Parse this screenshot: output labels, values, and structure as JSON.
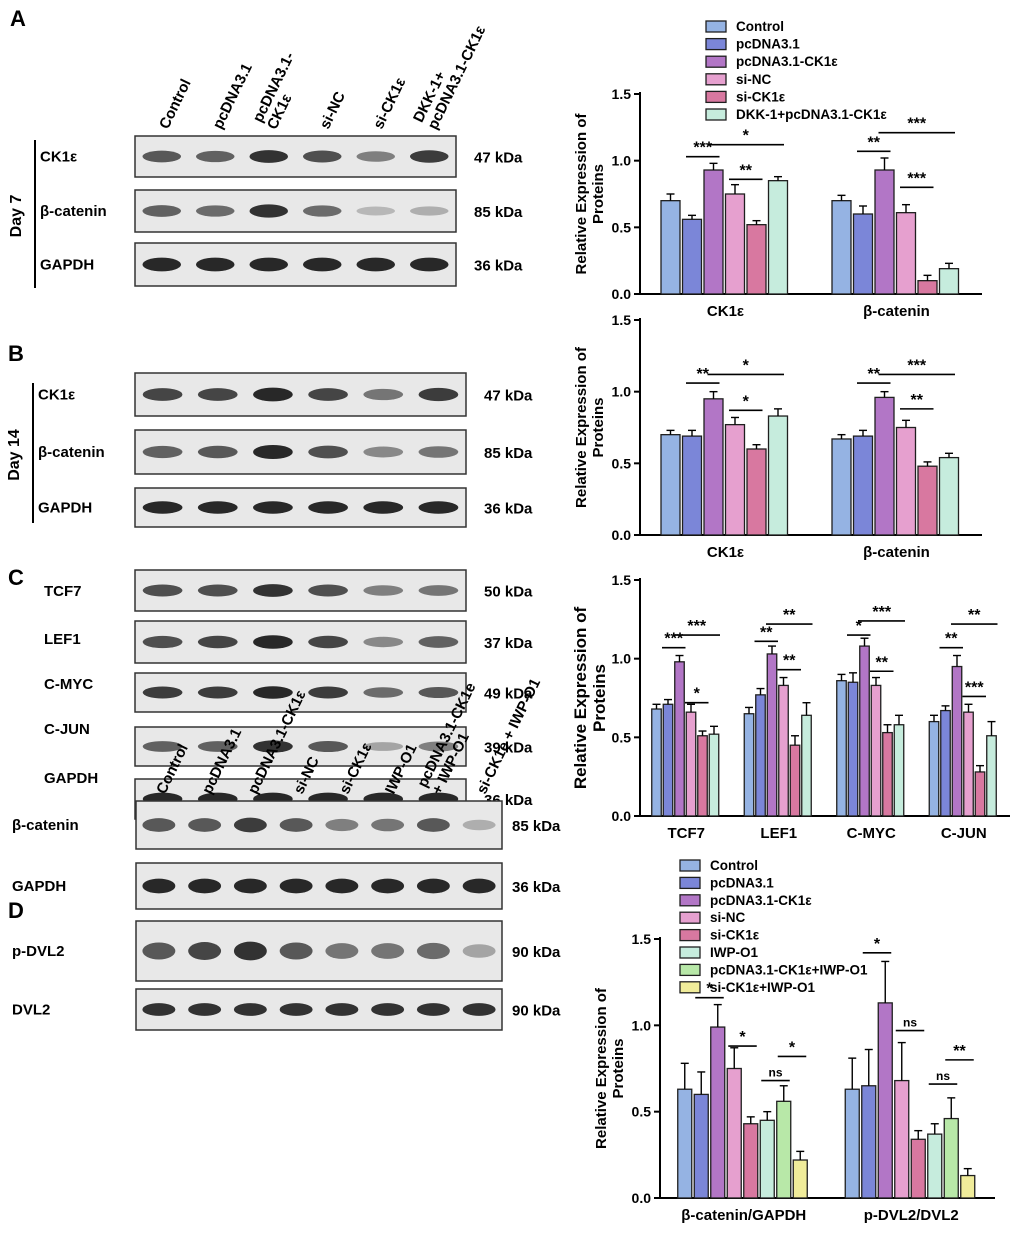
{
  "colors": {
    "series": [
      "#95b3e3",
      "#7b86d8",
      "#b276c6",
      "#e6a0cf",
      "#d878a0",
      "#c6ecdd",
      "#b8e8a8",
      "#f0ec9a"
    ],
    "bar_stroke": "#1f1f1f",
    "band": "#1e1e1e",
    "blot_bg": "#e8e8e8"
  },
  "panels": {
    "A": {
      "letter": "A",
      "day": "Day 7",
      "lanes": [
        "Control",
        "pcDNA3.1",
        "pcDNA3.1-\nCK1ε",
        "si-NC",
        "si-CK1ε",
        "DKK-1+\npcDNA3.1-CK1ε"
      ],
      "blots": [
        {
          "label": "CK1ε",
          "kda": "47 kDa",
          "int": [
            0.75,
            0.7,
            0.95,
            0.8,
            0.55,
            0.9
          ]
        },
        {
          "label": "β-catenin",
          "kda": "85 kDa",
          "int": [
            0.7,
            0.65,
            0.95,
            0.65,
            0.25,
            0.3
          ]
        },
        {
          "label": "GAPDH",
          "kda": "36 kDa",
          "int": [
            1,
            1,
            1,
            1,
            1,
            1
          ]
        }
      ]
    },
    "B": {
      "letter": "B",
      "day": "Day 14",
      "blots": [
        {
          "label": "CK1ε",
          "kda": "47 kDa",
          "int": [
            0.85,
            0.85,
            1,
            0.85,
            0.6,
            0.9
          ]
        },
        {
          "label": "β-catenin",
          "kda": "85 kDa",
          "int": [
            0.7,
            0.75,
            1,
            0.8,
            0.5,
            0.6
          ]
        },
        {
          "label": "GAPDH",
          "kda": "36 kDa",
          "int": [
            1,
            1,
            1,
            1,
            1,
            1
          ]
        }
      ]
    },
    "C": {
      "letter": "C",
      "blots": [
        {
          "label": "TCF7",
          "kda": "50 kDa",
          "int": [
            0.8,
            0.8,
            0.95,
            0.8,
            0.55,
            0.6
          ]
        },
        {
          "label": "LEF1",
          "kda": "37 kDa",
          "int": [
            0.8,
            0.85,
            1,
            0.85,
            0.5,
            0.7
          ]
        },
        {
          "label": "C-MYC",
          "kda": "49 kDa",
          "int": [
            0.9,
            0.9,
            1,
            0.9,
            0.65,
            0.75
          ]
        },
        {
          "label": "C-JUN",
          "kda": "39 kDa",
          "int": [
            0.7,
            0.7,
            0.95,
            0.75,
            0.35,
            0.55
          ]
        },
        {
          "label": "GAPDH",
          "kda": "36 kDa",
          "int": [
            1,
            1,
            1,
            1,
            1,
            1
          ]
        }
      ]
    },
    "D": {
      "letter": "D",
      "lanes": [
        "Control",
        "pcDNA3.1",
        "pcDNA3.1-CK1ε",
        "si-NC",
        "si-CK1ε",
        "IWP-O1",
        "pcDNA3.1-CK1e\n+ IWP-O1",
        "si-CK1e + IWP-O1"
      ],
      "blots": [
        {
          "label": "β-catenin",
          "kda": "85 kDa",
          "int": [
            0.75,
            0.75,
            0.9,
            0.75,
            0.55,
            0.6,
            0.75,
            0.3
          ]
        },
        {
          "label": "GAPDH",
          "kda": "36 kDa",
          "int": [
            1,
            1,
            1,
            1,
            1,
            1,
            1,
            1
          ]
        },
        {
          "label": "p-DVL2",
          "kda": "90 kDa",
          "int": [
            0.75,
            0.85,
            0.95,
            0.75,
            0.6,
            0.6,
            0.65,
            0.35
          ]
        },
        {
          "label": "DVL2",
          "kda": "90 kDa",
          "int": [
            0.95,
            0.95,
            0.95,
            0.95,
            0.95,
            0.95,
            0.95,
            0.95
          ]
        }
      ]
    }
  },
  "chart_data": [
    {
      "id": "A",
      "type": "bar",
      "ylabel": "Relative  Expression of\nProteins",
      "ylim": [
        0,
        1.5
      ],
      "yticks": [
        "0.0",
        "0.5",
        "1.0",
        "1.5"
      ],
      "categories": [
        "CK1ε",
        "β-catenin"
      ],
      "legend": [
        "Control",
        "pcDNA3.1",
        "pcDNA3.1-CK1ε",
        "si-NC",
        "si-CK1ε",
        "DKK-1+pcDNA3.1-CK1ε"
      ],
      "series": [
        {
          "name": "Control",
          "values": [
            0.7,
            0.7
          ],
          "err": [
            0.05,
            0.04
          ]
        },
        {
          "name": "pcDNA3.1",
          "values": [
            0.56,
            0.6
          ],
          "err": [
            0.03,
            0.06
          ]
        },
        {
          "name": "pcDNA3.1-CK1ε",
          "values": [
            0.93,
            0.93
          ],
          "err": [
            0.05,
            0.09
          ]
        },
        {
          "name": "si-NC",
          "values": [
            0.75,
            0.61
          ],
          "err": [
            0.07,
            0.06
          ]
        },
        {
          "name": "si-CK1ε",
          "values": [
            0.52,
            0.1
          ],
          "err": [
            0.03,
            0.04
          ]
        },
        {
          "name": "DKK-1+pcDNA3.1-CK1ε",
          "values": [
            0.85,
            0.19
          ],
          "err": [
            0.03,
            0.04
          ]
        }
      ],
      "sig": [
        {
          "cat": 0,
          "from": 1,
          "to": 2,
          "y": 1.03,
          "label": "***"
        },
        {
          "cat": 0,
          "from": 2,
          "to": 5,
          "y": 1.12,
          "label": "*"
        },
        {
          "cat": 0,
          "from": 3,
          "to": 4,
          "y": 0.86,
          "label": "**"
        },
        {
          "cat": 1,
          "from": 1,
          "to": 2,
          "y": 1.07,
          "label": "**"
        },
        {
          "cat": 1,
          "from": 2,
          "to": 5,
          "y": 1.21,
          "label": "***"
        },
        {
          "cat": 1,
          "from": 3,
          "to": 4,
          "y": 0.8,
          "label": "***"
        }
      ]
    },
    {
      "id": "B",
      "type": "bar",
      "ylabel": "Relative  Expression of\nProteins",
      "ylim": [
        0,
        1.5
      ],
      "yticks": [
        "0.0",
        "0.5",
        "1.0",
        "1.5"
      ],
      "categories": [
        "CK1ε",
        "β-catenin"
      ],
      "series": [
        {
          "name": "Control",
          "values": [
            0.7,
            0.67
          ],
          "err": [
            0.03,
            0.03
          ]
        },
        {
          "name": "pcDNA3.1",
          "values": [
            0.69,
            0.69
          ],
          "err": [
            0.04,
            0.04
          ]
        },
        {
          "name": "pcDNA3.1-CK1ε",
          "values": [
            0.95,
            0.96
          ],
          "err": [
            0.05,
            0.04
          ]
        },
        {
          "name": "si-NC",
          "values": [
            0.77,
            0.75
          ],
          "err": [
            0.05,
            0.05
          ]
        },
        {
          "name": "si-CK1ε",
          "values": [
            0.6,
            0.48
          ],
          "err": [
            0.03,
            0.03
          ]
        },
        {
          "name": "DKK-1+pcDNA3.1-CK1ε",
          "values": [
            0.83,
            0.54
          ],
          "err": [
            0.05,
            0.03
          ]
        }
      ],
      "sig": [
        {
          "cat": 0,
          "from": 1,
          "to": 2,
          "y": 1.06,
          "label": "**"
        },
        {
          "cat": 0,
          "from": 2,
          "to": 5,
          "y": 1.12,
          "label": "*"
        },
        {
          "cat": 0,
          "from": 3,
          "to": 4,
          "y": 0.87,
          "label": "*"
        },
        {
          "cat": 1,
          "from": 1,
          "to": 2,
          "y": 1.06,
          "label": "**"
        },
        {
          "cat": 1,
          "from": 2,
          "to": 5,
          "y": 1.12,
          "label": "***"
        },
        {
          "cat": 1,
          "from": 3,
          "to": 4,
          "y": 0.88,
          "label": "**"
        }
      ]
    },
    {
      "id": "C",
      "type": "bar",
      "ylabel": "Relative Expression of\nProteins",
      "ylim": [
        0,
        1.5
      ],
      "yticks": [
        "0.0",
        "0.5",
        "1.0",
        "1.5"
      ],
      "categories": [
        "TCF7",
        "LEF1",
        "C-MYC",
        "C-JUN"
      ],
      "series": [
        {
          "name": "Control",
          "values": [
            0.68,
            0.65,
            0.86,
            0.6
          ],
          "err": [
            0.03,
            0.04,
            0.04,
            0.04
          ]
        },
        {
          "name": "pcDNA3.1",
          "values": [
            0.71,
            0.77,
            0.85,
            0.67
          ],
          "err": [
            0.03,
            0.04,
            0.06,
            0.03
          ]
        },
        {
          "name": "pcDNA3.1-CK1ε",
          "values": [
            0.98,
            1.03,
            1.08,
            0.95
          ],
          "err": [
            0.04,
            0.05,
            0.05,
            0.07
          ]
        },
        {
          "name": "si-NC",
          "values": [
            0.66,
            0.83,
            0.83,
            0.66
          ],
          "err": [
            0.05,
            0.05,
            0.05,
            0.05
          ]
        },
        {
          "name": "si-CK1ε",
          "values": [
            0.51,
            0.45,
            0.53,
            0.28
          ],
          "err": [
            0.03,
            0.06,
            0.05,
            0.04
          ]
        },
        {
          "name": "DKK-1+pcDNA3.1-CK1ε",
          "values": [
            0.52,
            0.64,
            0.58,
            0.51
          ],
          "err": [
            0.05,
            0.08,
            0.06,
            0.09
          ]
        }
      ],
      "sig": [
        {
          "cat": 0,
          "from": 1,
          "to": 2,
          "y": 1.07,
          "label": "***"
        },
        {
          "cat": 0,
          "from": 2,
          "to": 5,
          "y": 1.15,
          "label": "***"
        },
        {
          "cat": 0,
          "from": 3,
          "to": 4,
          "y": 0.72,
          "label": "*"
        },
        {
          "cat": 1,
          "from": 1,
          "to": 2,
          "y": 1.11,
          "label": "**"
        },
        {
          "cat": 1,
          "from": 2,
          "to": 5,
          "y": 1.22,
          "label": "**"
        },
        {
          "cat": 1,
          "from": 3,
          "to": 4,
          "y": 0.93,
          "label": "**"
        },
        {
          "cat": 2,
          "from": 1,
          "to": 2,
          "y": 1.15,
          "label": "*"
        },
        {
          "cat": 2,
          "from": 2,
          "to": 5,
          "y": 1.24,
          "label": "***"
        },
        {
          "cat": 2,
          "from": 3,
          "to": 4,
          "y": 0.92,
          "label": "**"
        },
        {
          "cat": 3,
          "from": 1,
          "to": 2,
          "y": 1.07,
          "label": "**"
        },
        {
          "cat": 3,
          "from": 2,
          "to": 5,
          "y": 1.22,
          "label": "**"
        },
        {
          "cat": 3,
          "from": 3,
          "to": 4,
          "y": 0.76,
          "label": "***"
        }
      ]
    },
    {
      "id": "D",
      "type": "bar",
      "ylabel": "Relative  Expression of\nProteins",
      "ylim": [
        0,
        1.5
      ],
      "yticks": [
        "0.0",
        "0.5",
        "1.0",
        "1.5"
      ],
      "categories": [
        "β-catenin/GAPDH",
        "p-DVL2/DVL2"
      ],
      "legend": [
        "Control",
        "pcDNA3.1",
        "pcDNA3.1-CK1ε",
        "si-NC",
        "si-CK1ε",
        "IWP-O1",
        "pcDNA3.1-CK1ε+IWP-O1",
        "si-CK1ε+IWP-O1"
      ],
      "series": [
        {
          "name": "Control",
          "values": [
            0.63,
            0.63
          ],
          "err": [
            0.15,
            0.18
          ]
        },
        {
          "name": "pcDNA3.1",
          "values": [
            0.6,
            0.65
          ],
          "err": [
            0.13,
            0.21
          ]
        },
        {
          "name": "pcDNA3.1-CK1ε",
          "values": [
            0.99,
            1.13
          ],
          "err": [
            0.13,
            0.24
          ]
        },
        {
          "name": "si-NC",
          "values": [
            0.75,
            0.68
          ],
          "err": [
            0.12,
            0.22
          ]
        },
        {
          "name": "si-CK1ε",
          "values": [
            0.43,
            0.34
          ],
          "err": [
            0.04,
            0.05
          ]
        },
        {
          "name": "IWP-O1",
          "values": [
            0.45,
            0.37
          ],
          "err": [
            0.05,
            0.06
          ]
        },
        {
          "name": "pcDNA3.1-CK1ε+IWP-O1",
          "values": [
            0.56,
            0.46
          ],
          "err": [
            0.09,
            0.12
          ]
        },
        {
          "name": "si-CK1ε+IWP-O1",
          "values": [
            0.22,
            0.13
          ],
          "err": [
            0.05,
            0.04
          ]
        }
      ],
      "sig": [
        {
          "cat": 0,
          "from": 1,
          "to": 2,
          "y": 1.16,
          "label": "*"
        },
        {
          "cat": 0,
          "from": 3,
          "to": 4,
          "y": 0.88,
          "label": "*"
        },
        {
          "cat": 0,
          "from": 5,
          "to": 6,
          "y": 0.68,
          "label": "ns"
        },
        {
          "cat": 0,
          "from": 6,
          "to": 7,
          "y": 0.82,
          "label": "*"
        },
        {
          "cat": 1,
          "from": 1,
          "to": 2,
          "y": 1.42,
          "label": "*"
        },
        {
          "cat": 1,
          "from": 3,
          "to": 4,
          "y": 0.97,
          "label": "ns"
        },
        {
          "cat": 1,
          "from": 5,
          "to": 6,
          "y": 0.66,
          "label": "ns"
        },
        {
          "cat": 1,
          "from": 6,
          "to": 7,
          "y": 0.8,
          "label": "**"
        }
      ]
    }
  ]
}
